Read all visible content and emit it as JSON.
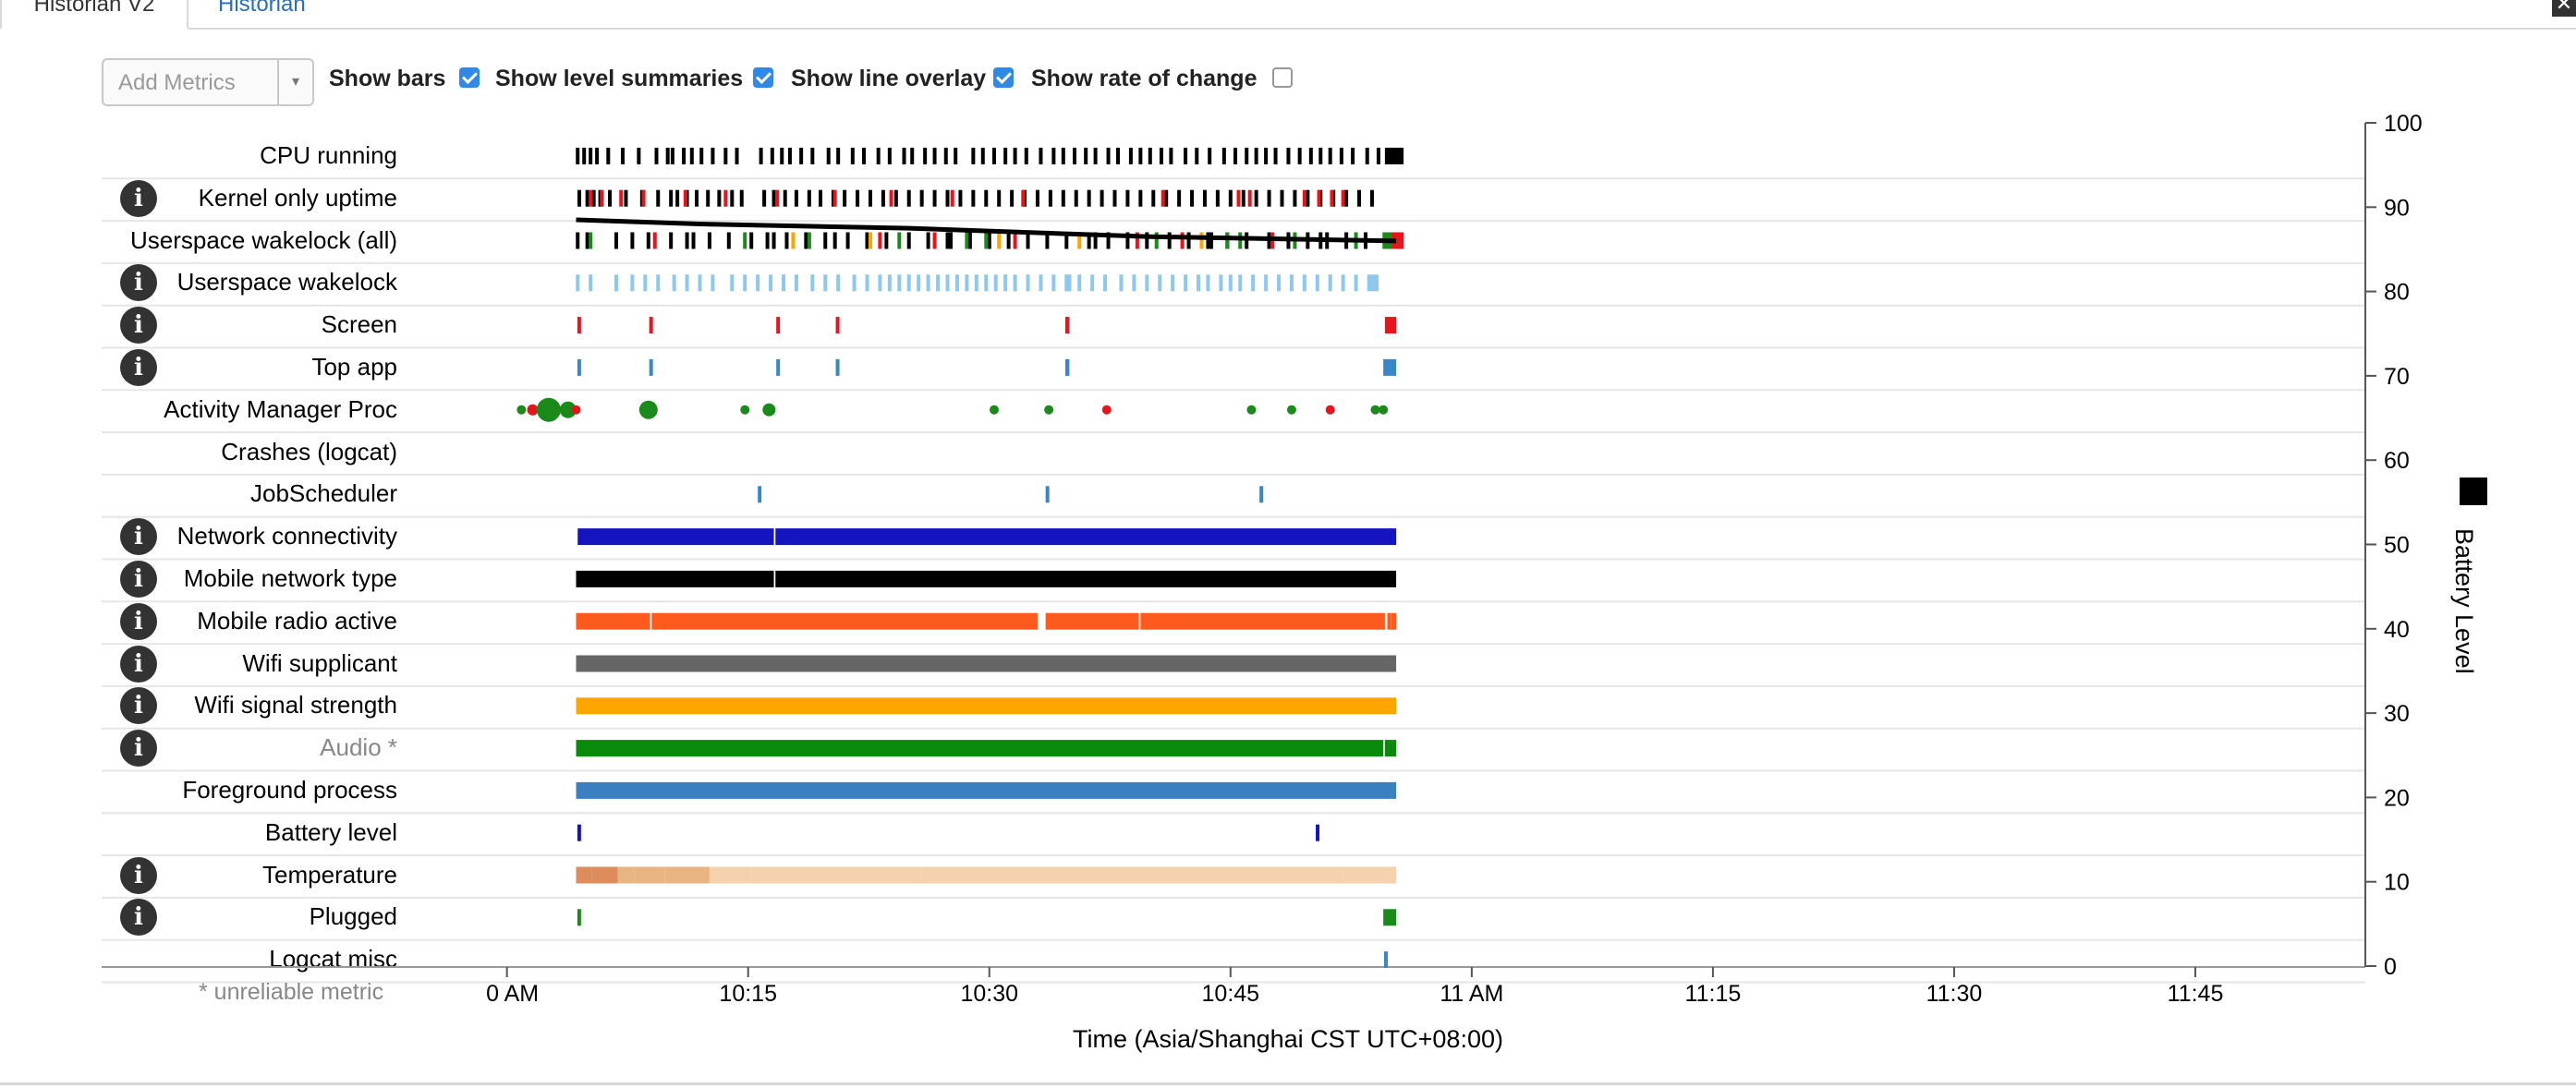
{
  "tabs": [
    {
      "label": "Historian V2",
      "active": true
    },
    {
      "label": "Historian",
      "active": false
    }
  ],
  "close_label": "✕",
  "controls": {
    "add_metrics_placeholder": "Add Metrics",
    "dropdown_arrow": "▾",
    "options": [
      {
        "label": "Show bars",
        "checked": true
      },
      {
        "label": "Show level summaries",
        "checked": true
      },
      {
        "label": "Show line overlay",
        "checked": true
      },
      {
        "label": "Show rate of change",
        "checked": false
      }
    ]
  },
  "info_glyph": "i",
  "unreliable_note": "* unreliable metric",
  "colors": {
    "black": "#000000",
    "red": "#e8141c",
    "blue_light": "#8fc8ee",
    "blue_mid": "#3a87c8",
    "green": "#1a8a1a",
    "navy": "#1414c0",
    "orange_red": "#ff5a1e",
    "gray": "#666666",
    "amber": "#ffa500",
    "dark_green": "#0a8a0a",
    "fg_blue": "#3a7fc0",
    "temp_light": "#f5d2ac",
    "temp_mid": "#e7b482",
    "temp_dark": "#df8c5c"
  },
  "chart_data": {
    "type": "timeline",
    "xlabel": "Time (Asia/Shanghai CST UTC+08:00)",
    "x_ticks": [
      "0 AM",
      "10:15",
      "10:30",
      "10:45",
      "11 AM",
      "11:15",
      "11:30",
      "11:45"
    ],
    "x_range_minutes": [
      -1,
      55.5
    ],
    "ylabel": "Battery Level",
    "y_ticks": [
      0,
      10,
      20,
      30,
      40,
      50,
      60,
      70,
      80,
      90,
      100
    ],
    "y_range": [
      0,
      100
    ],
    "battery_level_line": [
      [
        4.3,
        88.5
      ],
      [
        12,
        88
      ],
      [
        25,
        87.5
      ],
      [
        40,
        86.5
      ],
      [
        55.3,
        86
      ]
    ],
    "rows": [
      {
        "label": "CPU running",
        "info": false,
        "unreliable": false,
        "kind": "ticks",
        "color": "black",
        "events": [
          4.4,
          4.8,
          5.2,
          5.6,
          6.3,
          7.2,
          8.2,
          9.3,
          10,
          10.3,
          11,
          11.5,
          12.1,
          12.8,
          13.6,
          14.3,
          15.8,
          16.5,
          17.1,
          17.6,
          18.3,
          19,
          20,
          20.6,
          21.5,
          22.2,
          23.1,
          23.8,
          24.7,
          25.2,
          26,
          26.6,
          27.3,
          27.9,
          29,
          29.6,
          30.3,
          31,
          31.6,
          32.3,
          33.2,
          34,
          34.6,
          35.3,
          36,
          36.6,
          37.4,
          38,
          38.8,
          39.4,
          40,
          40.7,
          41.3,
          42.2,
          42.9,
          43.7,
          44.6,
          45.3,
          46,
          46.6,
          47.2,
          47.8,
          48.6,
          49.3,
          50,
          50.6,
          51.2,
          51.9,
          52.6,
          53.5,
          54.2
        ]
      },
      {
        "label": "Kernel only uptime",
        "info": true,
        "unreliable": false,
        "kind": "ticks",
        "color": "black",
        "events": [
          4.5,
          5,
          5.4,
          5.8,
          6.4,
          7.4,
          8.4,
          9.4,
          10.2,
          10.6,
          11.2,
          11.8,
          12.5,
          13.2,
          14,
          14.6,
          16,
          16.6,
          17.3,
          18,
          18.8,
          19.5,
          20.3,
          21,
          21.8,
          22.6,
          23.4,
          24.2,
          25,
          25.8,
          26.6,
          27.4,
          28.2,
          29,
          29.8,
          30.6,
          31.4,
          32.2,
          33,
          33.8,
          34.6,
          35.4,
          36.2,
          37,
          37.8,
          38.6,
          39.4,
          40.2,
          41,
          41.8,
          42.6,
          43.4,
          44.2,
          45,
          45.8,
          46.6,
          47.4,
          48.2,
          49,
          49.8,
          50.6,
          51.4,
          52.2,
          53,
          53.8
        ],
        "red_events": [
          5.2,
          5.9,
          7.1,
          8.5,
          11.1,
          13.6,
          16.8,
          20.4,
          23.9,
          27.7,
          32.1,
          40.8,
          45.5,
          46.2,
          49.6,
          50.5,
          51.3,
          52
        ]
      },
      {
        "label": "Userspace wakelock (all)",
        "info": false,
        "unreliable": false,
        "kind": "ticks",
        "color": "black",
        "events": [
          4.4,
          5,
          6.8,
          7.8,
          8.8,
          10.2,
          11.2,
          12.6,
          13.8,
          15.2,
          16.2,
          17.4,
          18.6,
          19.8,
          21.2,
          22.4,
          23.6,
          25,
          26.2,
          27.4,
          28.8,
          30,
          31.2,
          32.4,
          33.6,
          34.8,
          36.2,
          37.4,
          38.6,
          39.8,
          41.2,
          42.4,
          43.6,
          44.8,
          46,
          47.4,
          48.6,
          49.8,
          51,
          52.2,
          53.4
        ],
        "colored_events": [
          [
            5.2,
            "green"
          ],
          [
            9.2,
            "red"
          ],
          [
            11.6,
            "blue"
          ],
          [
            14.8,
            "green"
          ],
          [
            16.6,
            "blue"
          ],
          [
            17.8,
            "amber"
          ],
          [
            18.8,
            "green"
          ],
          [
            20.4,
            "blue"
          ],
          [
            22.6,
            "amber"
          ],
          [
            23.2,
            "red"
          ],
          [
            24.4,
            "green"
          ],
          [
            26.6,
            "red"
          ],
          [
            27.6,
            "blue"
          ],
          [
            28.6,
            "green"
          ],
          [
            29.8,
            "green"
          ],
          [
            30.6,
            "amber"
          ],
          [
            31.6,
            "red"
          ],
          [
            35.6,
            "amber"
          ],
          [
            36.6,
            "blue"
          ],
          [
            39.2,
            "red"
          ],
          [
            40.4,
            "green"
          ],
          [
            42,
            "red"
          ],
          [
            43.2,
            "amber"
          ],
          [
            43.8,
            "blue"
          ],
          [
            44.8,
            "green"
          ],
          [
            45.6,
            "green"
          ],
          [
            47.6,
            "red"
          ],
          [
            49,
            "green"
          ],
          [
            50.6,
            "blue"
          ],
          [
            52.8,
            "green"
          ]
        ]
      },
      {
        "label": "Userspace wakelock",
        "info": true,
        "unreliable": false,
        "kind": "ticks",
        "color": "blue_light",
        "events": [
          4.4,
          5.2,
          6.8,
          7.8,
          8.6,
          9.4,
          10.4,
          11.2,
          12,
          12.8,
          14,
          14.8,
          15.6,
          16.4,
          17.2,
          18,
          19,
          19.8,
          20.6,
          21.6,
          22.4,
          23.2,
          23.8,
          24.4,
          25,
          25.6,
          26.2,
          26.8,
          27.4,
          28,
          28.6,
          29.2,
          29.8,
          30.4,
          31,
          31.6,
          32.4,
          33.2,
          34,
          34.8,
          35.6,
          36.4,
          37.2,
          38.2,
          39,
          39.8,
          40.6,
          41.4,
          42.2,
          43,
          43.6,
          44.4,
          45,
          45.6,
          46.4,
          47.2,
          48,
          48.8,
          49.6,
          50.4,
          51.2,
          52,
          52.8
        ],
        "wide_events": [
          [
            34.7,
            35.1
          ],
          [
            53.5,
            54.2
          ]
        ]
      },
      {
        "label": "Screen",
        "info": true,
        "unreliable": false,
        "kind": "spans",
        "color": "red",
        "spans": [
          [
            4.38,
            4.48
          ],
          [
            8.85,
            8.95
          ],
          [
            16.75,
            16.85
          ],
          [
            20.45,
            20.55
          ],
          [
            34.72,
            34.98
          ],
          [
            54.6,
            55.3
          ]
        ]
      },
      {
        "label": "Top app",
        "info": true,
        "unreliable": false,
        "kind": "spans",
        "color": "blue_mid",
        "spans": [
          [
            4.38,
            4.48
          ],
          [
            8.85,
            8.95
          ],
          [
            16.75,
            16.85
          ],
          [
            20.45,
            20.55
          ],
          [
            34.72,
            34.98
          ],
          [
            54.5,
            55.3
          ]
        ]
      },
      {
        "label": "Activity Manager Proc",
        "info": false,
        "unreliable": false,
        "kind": "dots",
        "dots": [
          [
            0.9,
            2.5,
            "green"
          ],
          [
            1.6,
            3,
            "red"
          ],
          [
            2.1,
            2.5,
            "green"
          ],
          [
            2.6,
            6.5,
            "green"
          ],
          [
            3.8,
            4.5,
            "green"
          ],
          [
            4.3,
            2.5,
            "red"
          ],
          [
            8.8,
            5,
            "green"
          ],
          [
            14.8,
            2.5,
            "green"
          ],
          [
            16.3,
            3.5,
            "green"
          ],
          [
            30.3,
            2.5,
            "green"
          ],
          [
            33.7,
            2.5,
            "green"
          ],
          [
            37.3,
            2.5,
            "red"
          ],
          [
            46.3,
            2.5,
            "green"
          ],
          [
            48.8,
            2.5,
            "green"
          ],
          [
            51.2,
            2.5,
            "red"
          ],
          [
            54,
            2.5,
            "green"
          ],
          [
            54.5,
            2.5,
            "green"
          ]
        ]
      },
      {
        "label": "Crashes (logcat)",
        "info": false,
        "unreliable": false,
        "kind": "none"
      },
      {
        "label": "JobScheduler",
        "info": false,
        "unreliable": false,
        "kind": "spans",
        "color": "blue_mid",
        "spans": [
          [
            15.6,
            15.7
          ],
          [
            33.5,
            33.6
          ],
          [
            46.8,
            46.9
          ]
        ]
      },
      {
        "label": "Network connectivity",
        "info": true,
        "unreliable": false,
        "kind": "spans",
        "color": "navy",
        "spans": [
          [
            4.4,
            16.6
          ],
          [
            16.7,
            55.3
          ]
        ]
      },
      {
        "label": "Mobile network type",
        "info": true,
        "unreliable": false,
        "kind": "spans",
        "color": "black",
        "spans": [
          [
            4.3,
            16.6
          ],
          [
            16.7,
            55.3
          ]
        ]
      },
      {
        "label": "Mobile radio active",
        "info": true,
        "unreliable": false,
        "kind": "spans",
        "color": "orange_red",
        "spans": [
          [
            4.3,
            8.9
          ],
          [
            9,
            33
          ],
          [
            33.5,
            39.3
          ],
          [
            39.4,
            54.6
          ],
          [
            54.75,
            54.9
          ],
          [
            55,
            55.3
          ]
        ]
      },
      {
        "label": "Wifi supplicant",
        "info": true,
        "unreliable": false,
        "kind": "spans",
        "color": "gray",
        "spans": [
          [
            4.3,
            55.3
          ]
        ]
      },
      {
        "label": "Wifi signal strength",
        "info": true,
        "unreliable": false,
        "kind": "spans",
        "color": "amber",
        "spans": [
          [
            4.3,
            55.3
          ]
        ]
      },
      {
        "label": "Audio *",
        "info": true,
        "unreliable": true,
        "kind": "spans",
        "color": "dark_green",
        "spans": [
          [
            4.3,
            54.5
          ],
          [
            54.6,
            55.3
          ]
        ]
      },
      {
        "label": "Foreground process",
        "info": false,
        "unreliable": false,
        "kind": "spans",
        "color": "fg_blue",
        "spans": [
          [
            4.3,
            55.3
          ]
        ]
      },
      {
        "label": "Battery level",
        "info": false,
        "unreliable": false,
        "kind": "spans",
        "color": "navy",
        "spans": [
          [
            4.38,
            4.48
          ],
          [
            50.3,
            50.4
          ]
        ]
      },
      {
        "label": "Temperature",
        "info": true,
        "unreliable": false,
        "kind": "segments",
        "segments": [
          [
            4.3,
            5.3,
            "temp_dark"
          ],
          [
            5.3,
            6.9,
            "temp_dark"
          ],
          [
            6.9,
            7.9,
            "temp_mid"
          ],
          [
            7.9,
            9.8,
            "temp_mid"
          ],
          [
            9.8,
            12.6,
            "temp_mid"
          ],
          [
            12.6,
            15.2,
            "temp_light"
          ],
          [
            15.2,
            25.8,
            "temp_light"
          ],
          [
            25.8,
            52,
            "temp_light"
          ],
          [
            52,
            55.3,
            "temp_light"
          ]
        ]
      },
      {
        "label": "Plugged",
        "info": true,
        "unreliable": false,
        "kind": "spans",
        "color": "green",
        "spans": [
          [
            4.38,
            4.48
          ],
          [
            54.5,
            55.3
          ]
        ]
      },
      {
        "label": "Logcat misc",
        "info": false,
        "unreliable": false,
        "kind": "spans",
        "color": "blue_mid",
        "spans": [
          [
            54.55,
            54.65
          ]
        ]
      }
    ]
  }
}
